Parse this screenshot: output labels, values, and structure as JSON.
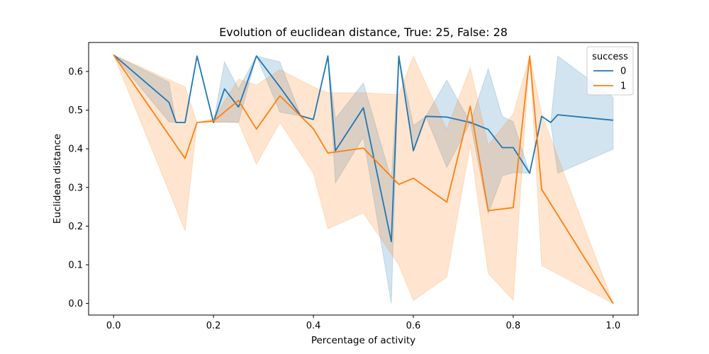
{
  "chart_data": {
    "type": "line",
    "title": "Evolution of euclidean distance, True: 25, False: 28",
    "xlabel": "Percentage of activity",
    "ylabel": "Euclidean distance",
    "xlim": [
      -0.05,
      1.05
    ],
    "ylim": [
      -0.03,
      0.675
    ],
    "xticks": [
      0.0,
      0.2,
      0.4,
      0.6,
      0.8,
      1.0
    ],
    "xtick_labels": [
      "0.0",
      "0.2",
      "0.4",
      "0.6",
      "0.8",
      "1.0"
    ],
    "yticks": [
      0.0,
      0.1,
      0.2,
      0.3,
      0.4,
      0.5,
      0.6
    ],
    "ytick_labels": [
      "0.0",
      "0.1",
      "0.2",
      "0.3",
      "0.4",
      "0.5",
      "0.6"
    ],
    "grid": false,
    "legend": {
      "title": "success",
      "placement": "top-right"
    },
    "series": [
      {
        "name": "0",
        "color": "#1f77b4",
        "x": [
          0.0,
          0.111,
          0.125,
          0.143,
          0.167,
          0.2,
          0.222,
          0.25,
          0.286,
          0.333,
          0.375,
          0.4,
          0.429,
          0.444,
          0.5,
          0.556,
          0.571,
          0.6,
          0.625,
          0.667,
          0.714,
          0.75,
          0.778,
          0.8,
          0.833,
          0.857,
          0.875,
          0.889,
          1.0
        ],
        "y": [
          0.643,
          0.52,
          0.468,
          0.468,
          0.64,
          0.468,
          0.555,
          0.508,
          0.64,
          0.56,
          0.485,
          0.476,
          0.64,
          0.395,
          0.506,
          0.16,
          0.64,
          0.395,
          0.484,
          0.482,
          0.468,
          0.45,
          0.403,
          0.403,
          0.337,
          0.484,
          0.468,
          0.488,
          0.474
        ],
        "lower": [
          0.643,
          0.47,
          0.468,
          0.468,
          0.64,
          0.468,
          0.47,
          0.468,
          0.64,
          0.495,
          0.485,
          0.476,
          0.64,
          0.312,
          0.43,
          0.0,
          0.64,
          0.395,
          0.484,
          0.352,
          0.468,
          0.232,
          0.33,
          0.338,
          0.337,
          0.484,
          0.468,
          0.337,
          0.399
        ],
        "upper": [
          0.643,
          0.572,
          0.468,
          0.468,
          0.64,
          0.468,
          0.625,
          0.555,
          0.64,
          0.625,
          0.485,
          0.476,
          0.64,
          0.478,
          0.57,
          0.32,
          0.64,
          0.46,
          0.484,
          0.578,
          0.468,
          0.607,
          0.484,
          0.47,
          0.337,
          0.484,
          0.468,
          0.64,
          0.533
        ]
      },
      {
        "name": "1",
        "color": "#ff7f0e",
        "x": [
          0.0,
          0.143,
          0.167,
          0.2,
          0.25,
          0.286,
          0.333,
          0.4,
          0.429,
          0.5,
          0.571,
          0.6,
          0.667,
          0.714,
          0.75,
          0.8,
          0.833,
          0.857,
          1.0
        ],
        "y": [
          0.643,
          0.375,
          0.468,
          0.472,
          0.525,
          0.451,
          0.537,
          0.452,
          0.389,
          0.402,
          0.308,
          0.324,
          0.262,
          0.51,
          0.24,
          0.248,
          0.64,
          0.295,
          0.0
        ],
        "lower": [
          0.643,
          0.188,
          0.468,
          0.468,
          0.468,
          0.36,
          0.468,
          0.337,
          0.193,
          0.234,
          0.1,
          0.008,
          0.068,
          0.41,
          0.078,
          0.008,
          0.64,
          0.098,
          0.0
        ],
        "upper": [
          0.643,
          0.56,
          0.468,
          0.478,
          0.58,
          0.565,
          0.605,
          0.56,
          0.545,
          0.545,
          0.54,
          0.64,
          0.45,
          0.61,
          0.41,
          0.49,
          0.64,
          0.49,
          0.0
        ]
      }
    ]
  }
}
